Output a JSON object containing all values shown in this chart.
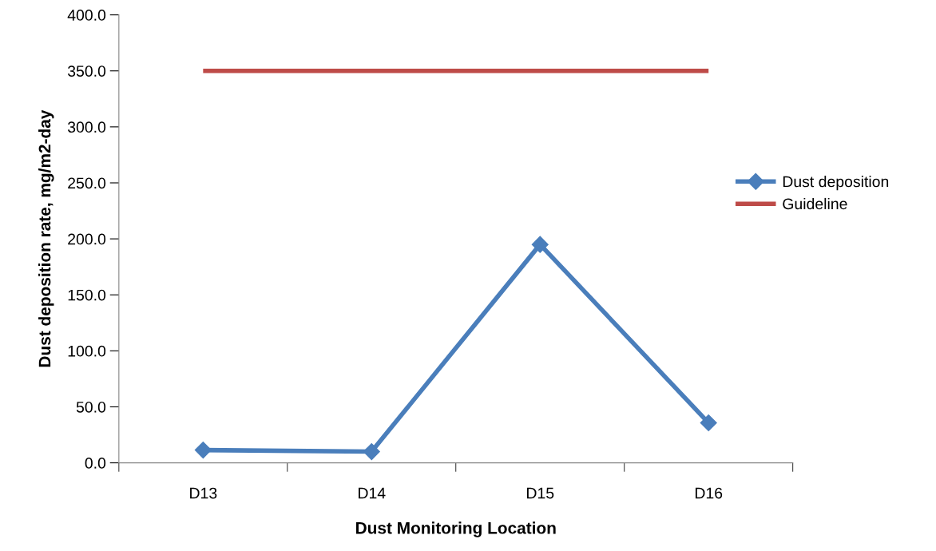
{
  "chart_data": {
    "type": "line",
    "xlabel": "Dust Monitoring Location",
    "ylabel": "Dust deposition rate, mg/m2-day",
    "categories": [
      "D13",
      "D14",
      "D15",
      "D16"
    ],
    "series": [
      {
        "name": "Dust deposition",
        "color": "#4a7ebb",
        "values": [
          11.4,
          10.0,
          195.0,
          35.7
        ],
        "marker": "diamond"
      },
      {
        "name": "Guideline",
        "color": "#be4b48",
        "values": [
          350.0,
          350.0,
          350.0,
          350.0
        ],
        "marker": "none"
      }
    ],
    "ylim": [
      0,
      400
    ],
    "yticks": [
      {
        "value": 0,
        "label": "0.0"
      },
      {
        "value": 50,
        "label": "50.0"
      },
      {
        "value": 100,
        "label": "100.0"
      },
      {
        "value": 150,
        "label": "150.0"
      },
      {
        "value": 200,
        "label": "200.0"
      },
      {
        "value": 250,
        "label": "250.0"
      },
      {
        "value": 300,
        "label": "300.0"
      },
      {
        "value": 350,
        "label": "350.0"
      },
      {
        "value": 400,
        "label": "400.0"
      }
    ],
    "grid": false,
    "legend": "right",
    "line_style": "solid"
  }
}
